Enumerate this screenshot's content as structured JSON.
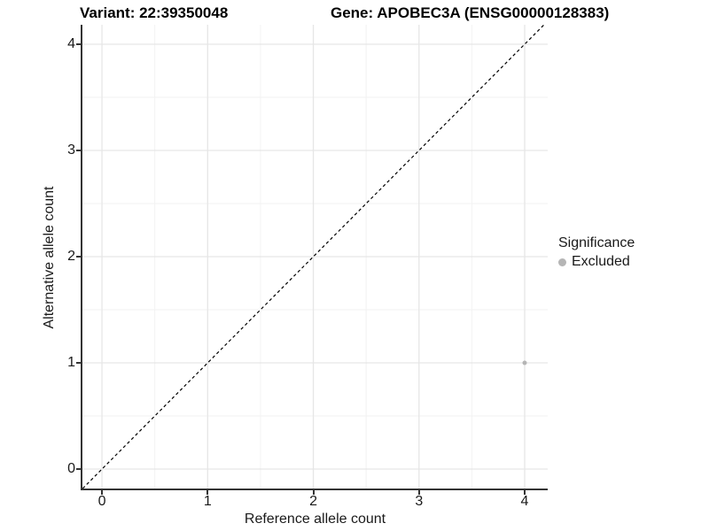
{
  "header": {
    "variant_label": "Variant: 22:39350048",
    "gene_label": "Gene: APOBEC3A (ENSG00000128383)"
  },
  "chart_data": {
    "type": "scatter",
    "title": "Variant: 22:39350048  |  Gene: APOBEC3A (ENSG00000128383)",
    "xlabel": "Reference allele count",
    "ylabel": "Alternative allele count",
    "xlim": [
      -0.185,
      4.218
    ],
    "ylim": [
      -0.183,
      4.183
    ],
    "xticks": [
      0,
      1,
      2,
      3,
      4
    ],
    "yticks": [
      0,
      1,
      2,
      3,
      4
    ],
    "grid": true,
    "abline": {
      "slope": 1,
      "intercept": 0,
      "style": "dashed",
      "color": "#000000"
    },
    "series": [
      {
        "name": "Excluded",
        "color": "#b5b5b5",
        "points": [
          {
            "x": 4,
            "y": 1
          }
        ]
      }
    ],
    "legend": {
      "title": "Significance",
      "position": "right",
      "entries": [
        {
          "label": "Excluded",
          "color": "#b5b5b5"
        }
      ]
    }
  },
  "colors": {
    "background": "#ffffff",
    "grid_major": "#e6e6e6",
    "grid_minor": "#f2f2f2",
    "axis_line": "#333333",
    "tick": "#333333",
    "point": "#b5b5b5",
    "abline": "#000000"
  }
}
